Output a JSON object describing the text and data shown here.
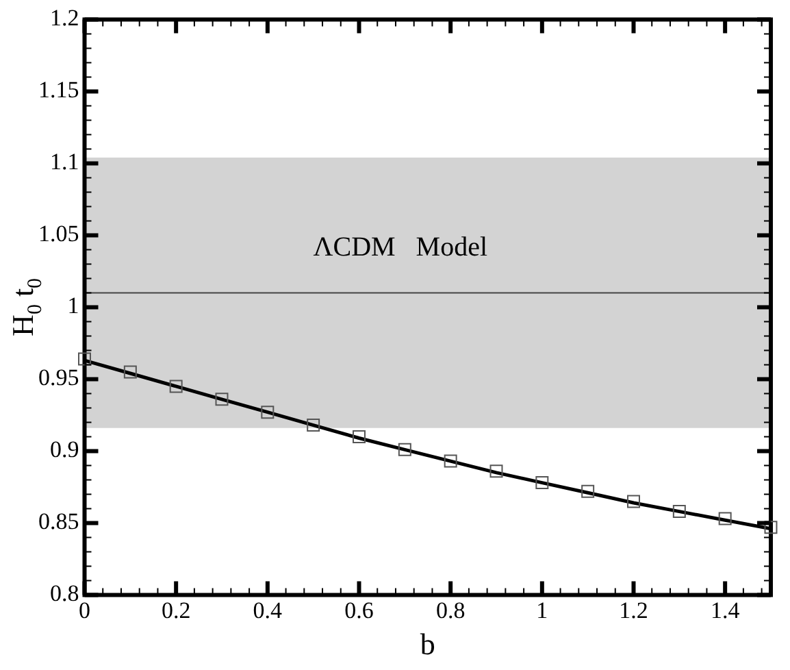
{
  "chart_data": {
    "type": "line",
    "xlabel": "b",
    "ylabel": "H$_{0}$ t$_{0}$",
    "xlim": [
      0,
      1.5
    ],
    "xticks": [
      0,
      0.2,
      0.4,
      0.6,
      0.8,
      1,
      1.2,
      1.4
    ],
    "ylim": [
      0.8,
      1.2
    ],
    "yticks": [
      0.8,
      0.85,
      0.9,
      0.95,
      1,
      1.05,
      1.1,
      1.15,
      1.2
    ],
    "grid": false,
    "legend": false,
    "series": [
      {
        "type": "line",
        "color": "#000000",
        "marker": "none",
        "line_style": "solid",
        "x": [
          0,
          0.1,
          0.2,
          0.3,
          0.4,
          0.5,
          0.6,
          0.7,
          0.8,
          0.9,
          1,
          1.1,
          1.2,
          1.3,
          1.4,
          1.5
        ],
        "values": [
          0.963,
          0.954,
          0.945,
          0.936,
          0.927,
          0.918,
          0.909,
          0.901,
          0.893,
          0.885,
          0.878,
          0.871,
          0.864,
          0.858,
          0.852,
          0.846
        ]
      },
      {
        "type": "scatter",
        "color": "#555555",
        "marker": "square",
        "x": [
          0,
          0.1,
          0.2,
          0.3,
          0.4,
          0.5,
          0.6,
          0.7,
          0.8,
          0.9,
          1,
          1.1,
          1.2,
          1.3,
          1.4,
          1.5
        ],
        "values": [
          0.964,
          0.955,
          0.945,
          0.936,
          0.927,
          0.918,
          0.91,
          0.901,
          0.893,
          0.886,
          0.878,
          0.872,
          0.865,
          0.858,
          0.853,
          0.847
        ]
      }
    ],
    "bands": [
      {
        "axis": "y",
        "from": 0.916,
        "to": 1.104,
        "label": null,
        "color": "#d3d3d3"
      }
    ],
    "ref_lines": [
      {
        "axis": "y",
        "value": 1.01,
        "label": "ΛCDM   Model",
        "color": "#444444",
        "line_style": "solid"
      }
    ]
  }
}
